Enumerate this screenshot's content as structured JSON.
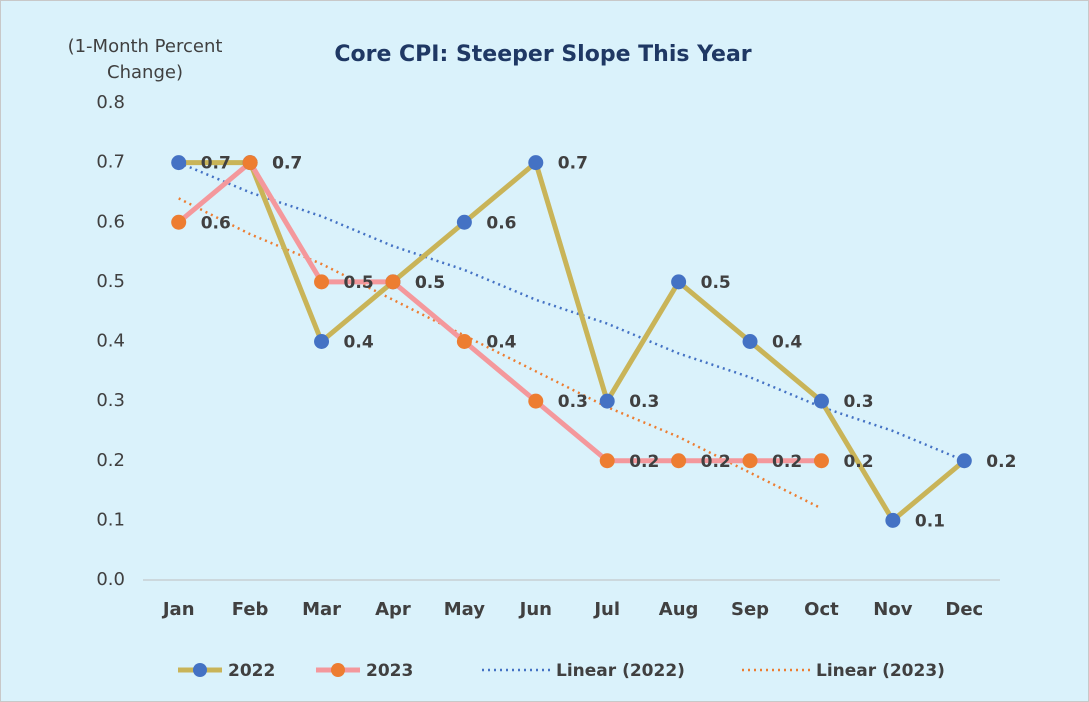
{
  "chart_data": {
    "type": "line",
    "title": "Core CPI:  Steeper Slope This Year",
    "y_axis_label": [
      "(1-Month Percent",
      "Change)"
    ],
    "categories": [
      "Jan",
      "Feb",
      "Mar",
      "Apr",
      "May",
      "Jun",
      "Jul",
      "Aug",
      "Sep",
      "Oct",
      "Nov",
      "Dec"
    ],
    "ylim": [
      0,
      0.8
    ],
    "yticks": [
      {
        "value": 0,
        "label": "0.0"
      },
      0.1,
      0.2,
      0.3,
      0.4,
      0.5,
      0.6,
      0.7,
      0.8
    ],
    "grid": false,
    "legend": "bottom",
    "series": [
      {
        "name": "2022",
        "color": "#c9b458",
        "marker_color": "#4472c4",
        "line_style": "solid",
        "data_labels": true,
        "values": [
          0.7,
          0.7,
          0.4,
          0.5,
          0.6,
          0.7,
          0.3,
          0.5,
          0.4,
          0.3,
          0.1,
          0.2
        ]
      },
      {
        "name": "2023",
        "color": "#f4989c",
        "marker_color": "#ed7d31",
        "line_style": "solid",
        "data_labels": true,
        "values": [
          0.6,
          0.7,
          0.5,
          0.5,
          0.4,
          0.3,
          0.2,
          0.2,
          0.2,
          0.2,
          null,
          null
        ]
      },
      {
        "name": "Linear (2022)",
        "color": "#4472c4",
        "line_style": "dotted",
        "data_labels": false,
        "values": [
          0.7,
          0.65,
          0.61,
          0.56,
          0.52,
          0.47,
          0.43,
          0.38,
          0.34,
          0.29,
          0.25,
          0.2
        ]
      },
      {
        "name": "Linear (2023)",
        "color": "#ed7d31",
        "line_style": "dotted",
        "data_labels": false,
        "values": [
          0.64,
          0.58,
          0.53,
          0.47,
          0.41,
          0.35,
          0.29,
          0.24,
          0.18,
          0.12,
          null,
          null
        ]
      }
    ]
  }
}
